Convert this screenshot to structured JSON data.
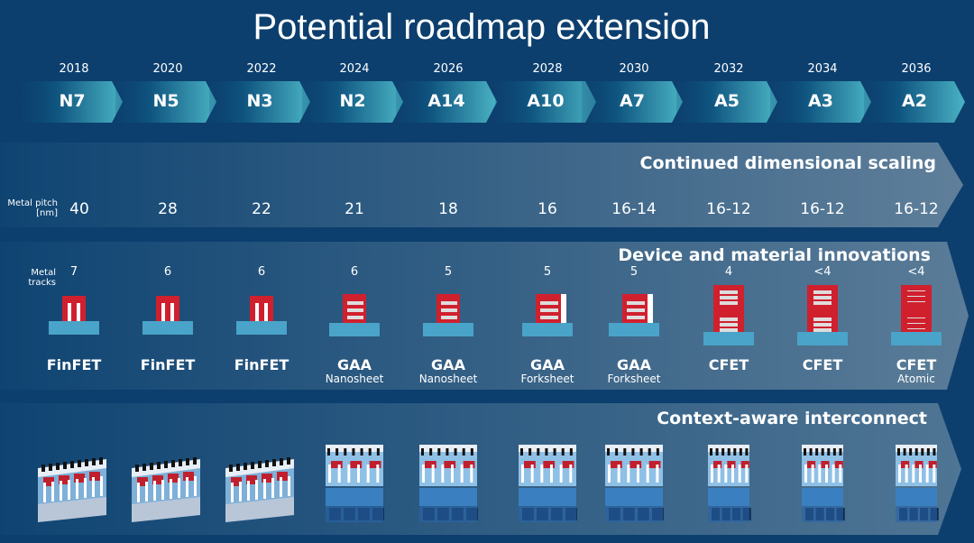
{
  "title": "Potential roadmap extension",
  "bands": {
    "scaling": "Continued dimensional scaling",
    "device": "Device and material innovations",
    "interconnect": "Context-aware interconnect"
  },
  "row_labels": {
    "pitch": "Metal pitch",
    "pitch_unit": "[nm]",
    "tracks": "Metal tracks"
  },
  "colors": {
    "background": "#0c3f6e",
    "chevron_start": "#0d4673",
    "chevron_end": "#4ab3c4",
    "transistor": "#d0202e",
    "substrate": "#4aa3c8"
  },
  "columns": [
    {
      "year": "2018",
      "node": "N7",
      "pitch": "40",
      "tracks": "7",
      "device": "FinFET",
      "sub": "",
      "type": "finfet",
      "interconnect": "planar"
    },
    {
      "year": "2020",
      "node": "N5",
      "pitch": "28",
      "tracks": "6",
      "device": "FinFET",
      "sub": "",
      "type": "finfet",
      "interconnect": "planar"
    },
    {
      "year": "2022",
      "node": "N3",
      "pitch": "22",
      "tracks": "6",
      "device": "FinFET",
      "sub": "",
      "type": "finfet",
      "interconnect": "planar"
    },
    {
      "year": "2024",
      "node": "N2",
      "pitch": "21",
      "tracks": "6",
      "device": "GAA",
      "sub": "Nanosheet",
      "type": "nanosheet",
      "interconnect": "stacked"
    },
    {
      "year": "2026",
      "node": "A14",
      "pitch": "18",
      "tracks": "5",
      "device": "GAA",
      "sub": "Nanosheet",
      "type": "nanosheet",
      "interconnect": "stacked"
    },
    {
      "year": "2028",
      "node": "A10",
      "pitch": "16",
      "tracks": "5",
      "device": "GAA",
      "sub": "Forksheet",
      "type": "forksheet",
      "interconnect": "stacked"
    },
    {
      "year": "2030",
      "node": "A7",
      "pitch": "16-14",
      "tracks": "5",
      "device": "GAA",
      "sub": "Forksheet",
      "type": "forksheet",
      "interconnect": "stacked"
    },
    {
      "year": "2032",
      "node": "A5",
      "pitch": "16-12",
      "tracks": "4",
      "device": "CFET",
      "sub": "",
      "type": "cfet",
      "interconnect": "tall"
    },
    {
      "year": "2034",
      "node": "A3",
      "pitch": "16-12",
      "tracks": "<4",
      "device": "CFET",
      "sub": "",
      "type": "cfet",
      "interconnect": "tall"
    },
    {
      "year": "2036",
      "node": "A2",
      "pitch": "16-12",
      "tracks": "<4",
      "device": "CFET",
      "sub": "Atomic",
      "type": "atomic",
      "interconnect": "tall"
    }
  ]
}
